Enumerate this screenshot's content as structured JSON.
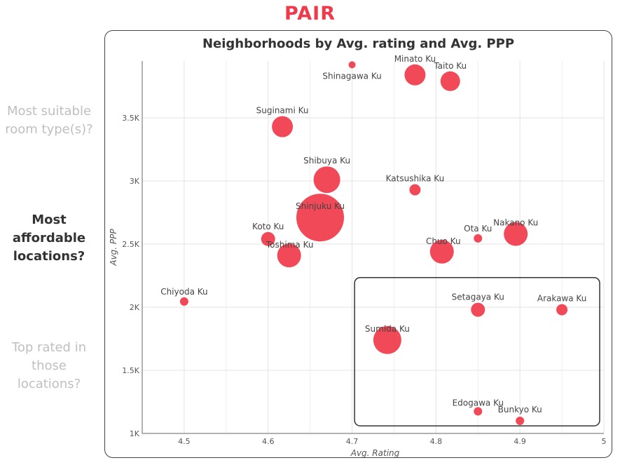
{
  "brand": "PAIR",
  "side_questions": [
    {
      "text": "Most suitable room type(s)?",
      "active": false
    },
    {
      "text": "Most affordable locations?",
      "active": true
    },
    {
      "text": "Top rated in those locations?",
      "active": false
    }
  ],
  "colors": {
    "accent": "#f0394a",
    "bubble": "#f0394a"
  },
  "chart_data": {
    "type": "scatter",
    "title": "Neighborhoods by Avg. rating and Avg. PPP",
    "xlabel": "Avg. Rating",
    "ylabel": "Avg. PPP",
    "xlim": [
      4.45,
      5.0
    ],
    "ylim": [
      1000,
      3950
    ],
    "xticks": [
      4.5,
      4.6,
      4.7,
      4.8,
      4.9,
      5
    ],
    "xtick_labels": [
      "4.5",
      "4.6",
      "4.7",
      "4.8",
      "4.9",
      "5"
    ],
    "yticks": [
      1000,
      1500,
      2000,
      2500,
      3000,
      3500
    ],
    "ytick_labels": [
      "1K",
      "1.5K",
      "2K",
      "2.5K",
      "3K",
      "3.5K"
    ],
    "grid": true,
    "points": [
      {
        "label": "Shinagawa Ku",
        "x": 4.7,
        "y": 3920,
        "size": 5
      },
      {
        "label": "Minato Ku",
        "x": 4.775,
        "y": 3840,
        "size": 15
      },
      {
        "label": "Taito Ku",
        "x": 4.817,
        "y": 3790,
        "size": 14
      },
      {
        "label": "Suginami Ku",
        "x": 4.617,
        "y": 3430,
        "size": 15
      },
      {
        "label": "Shibuya Ku",
        "x": 4.67,
        "y": 3010,
        "size": 19
      },
      {
        "label": "Katsushika Ku",
        "x": 4.775,
        "y": 2930,
        "size": 8
      },
      {
        "label": "Shinjuku Ku",
        "x": 4.662,
        "y": 2710,
        "size": 34
      },
      {
        "label": "Koto Ku",
        "x": 4.6,
        "y": 2540,
        "size": 10
      },
      {
        "label": "Toshima Ku",
        "x": 4.625,
        "y": 2410,
        "size": 17
      },
      {
        "label": "Ota Ku",
        "x": 4.85,
        "y": 2545,
        "size": 6
      },
      {
        "label": "Nakano Ku",
        "x": 4.895,
        "y": 2580,
        "size": 17
      },
      {
        "label": "Chuo Ku",
        "x": 4.807,
        "y": 2440,
        "size": 17
      },
      {
        "label": "Chiyoda Ku",
        "x": 4.5,
        "y": 2045,
        "size": 6
      },
      {
        "label": "Setagaya Ku",
        "x": 4.85,
        "y": 1980,
        "size": 10
      },
      {
        "label": "Arakawa Ku",
        "x": 4.95,
        "y": 1980,
        "size": 8
      },
      {
        "label": "Sumida Ku",
        "x": 4.742,
        "y": 1740,
        "size": 20
      },
      {
        "label": "Edogawa Ku",
        "x": 4.85,
        "y": 1175,
        "size": 6
      },
      {
        "label": "Bunkyo Ku",
        "x": 4.9,
        "y": 1100,
        "size": 6
      }
    ],
    "highlight_box": {
      "x": [
        4.703,
        4.995
      ],
      "y": [
        1060,
        2235
      ]
    }
  }
}
